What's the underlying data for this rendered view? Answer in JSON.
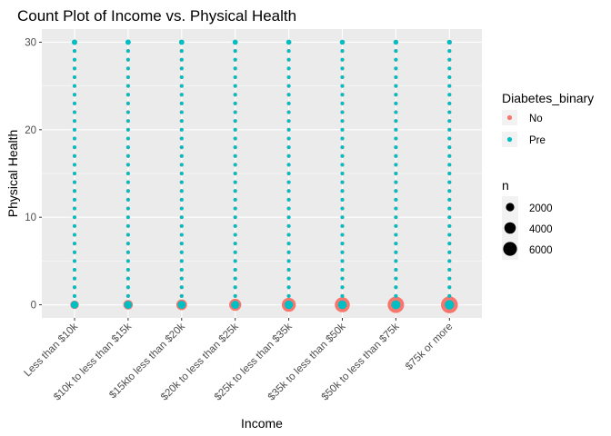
{
  "chart_data": {
    "type": "scatter",
    "title": "Count Plot of Income vs. Physical Health",
    "xlabel": "Income",
    "ylabel": "Physical Health",
    "categories": [
      "Less than $10k",
      "$10k to less than $15k",
      "$15kto less than $20k",
      "$20k to less than $25k",
      "$25k to less than $35k",
      "$35k to less than $50k",
      "$50k to less than $75k",
      "$75k or more"
    ],
    "y_values": [
      0,
      1,
      2,
      3,
      4,
      5,
      6,
      7,
      8,
      9,
      10,
      11,
      12,
      13,
      14,
      15,
      16,
      17,
      18,
      19,
      20,
      21,
      22,
      23,
      24,
      25,
      26,
      27,
      28,
      29,
      30
    ],
    "ylim": [
      -1.5,
      31.5
    ],
    "yticks": [
      0,
      10,
      20,
      30
    ],
    "grid": true,
    "series": [
      {
        "name": "No",
        "color": "#F8766D",
        "n_at_zero": [
          1300,
          1800,
          2400,
          3300,
          4700,
          5600,
          6900,
          7400
        ],
        "n_at_30": [
          250,
          230,
          240,
          230,
          220,
          210,
          200,
          190
        ],
        "n_typical": 60
      },
      {
        "name": "Pre",
        "color": "#00BFC4",
        "n_at_zero": [
          900,
          1000,
          1100,
          1150,
          1300,
          1400,
          1500,
          1700
        ],
        "n_at_30": [
          300,
          280,
          260,
          240,
          230,
          210,
          190,
          170
        ],
        "n_typical": 40
      }
    ],
    "legend": {
      "placement": "right",
      "color_title": "Diabetes_binary",
      "color_items": [
        "No",
        "Pre"
      ],
      "size_title": "n",
      "size_items": [
        2000,
        4000,
        6000
      ]
    }
  }
}
